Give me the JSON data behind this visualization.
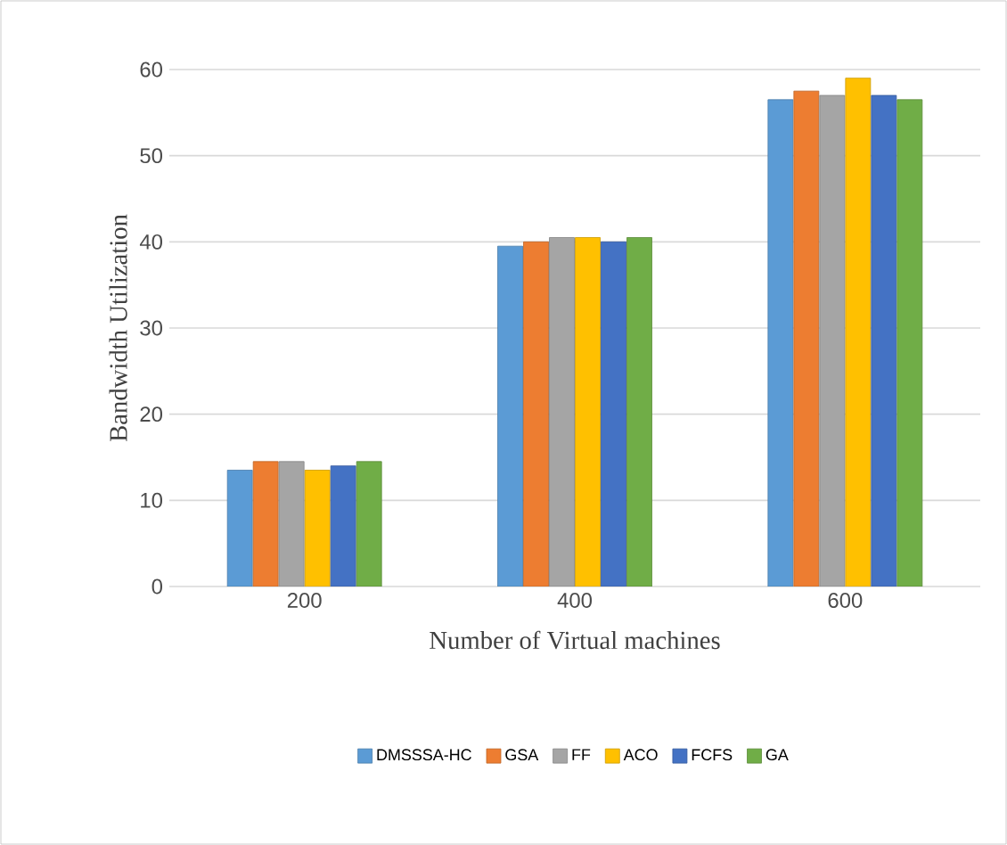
{
  "chart_data": {
    "type": "bar",
    "xlabel": "Number of Virtual machines",
    "ylabel": "Bandwidth Utilization",
    "categories": [
      "200",
      "400",
      "600"
    ],
    "series": [
      {
        "name": "DMSSSA-HC",
        "color": "#5b9bd5",
        "values": [
          13.5,
          39.5,
          56.5
        ]
      },
      {
        "name": "GSA",
        "color": "#ed7d31",
        "values": [
          14.5,
          40,
          57.5
        ]
      },
      {
        "name": "FF",
        "color": "#a5a5a5",
        "values": [
          14.5,
          40.5,
          57
        ]
      },
      {
        "name": "ACO",
        "color": "#ffc000",
        "values": [
          13.5,
          40.5,
          59
        ]
      },
      {
        "name": "FCFS",
        "color": "#4472c4",
        "values": [
          14,
          40,
          57
        ]
      },
      {
        "name": "GA",
        "color": "#70ad47",
        "values": [
          14.5,
          40.5,
          56.5
        ]
      }
    ],
    "ylim": [
      0,
      60
    ],
    "yticks": [
      0,
      10,
      20,
      30,
      40,
      50,
      60
    ],
    "grid": "y",
    "legend": "bottom"
  }
}
